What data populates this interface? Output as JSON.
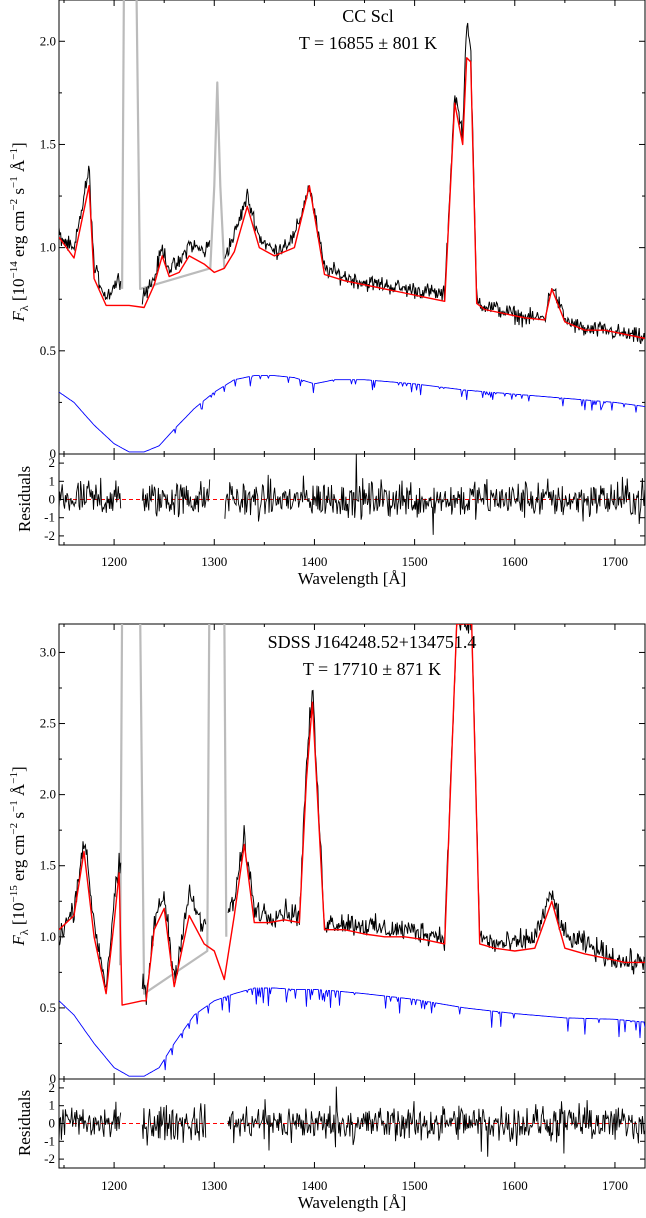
{
  "chart_data": [
    {
      "type": "line",
      "title": "CC Scl",
      "subtitle": "T = 16855 ± 801 K",
      "ylabel": "F_λ [10^−14 erg cm^−2 s^−1 Å^−1]",
      "ylabel_parts": {
        "sym": "F",
        "sub": "λ",
        "a": " [10",
        "e1": "−14",
        "b": " erg cm",
        "e2": "−2",
        "c": " s",
        "e3": "−1",
        "d": " Å",
        "e4": "−1",
        "e": "]"
      },
      "xlabel": "Wavelength [Å]",
      "resid_ylabel": "Residuals",
      "xlim": [
        1145,
        1730
      ],
      "ylim": [
        0,
        2.2
      ],
      "resid_ylim": [
        -2.5,
        2.5
      ],
      "xticks": [
        "1200",
        "1300",
        "1400",
        "1500",
        "1600",
        "1700"
      ],
      "yticks": [
        "0",
        "0.5",
        "1.0",
        "1.5",
        "2.0"
      ],
      "resid_yticks": [
        "2",
        "1",
        "0",
        "-1",
        "-2"
      ],
      "colors": {
        "observed": "#000000",
        "model": "#ff0000",
        "masked": "#bbbbbb",
        "wd": "#0000ff"
      },
      "series": [
        {
          "name": "observed",
          "x": [
            1145,
            1160,
            1175,
            1180,
            1192,
            1205,
            1215,
            1230,
            1240,
            1248,
            1255,
            1265,
            1275,
            1290,
            1300,
            1310,
            1320,
            1333,
            1345,
            1360,
            1380,
            1395,
            1410,
            1430,
            1450,
            1470,
            1490,
            1510,
            1530,
            1540,
            1548,
            1552,
            1556,
            1562,
            1570,
            1590,
            1610,
            1630,
            1637,
            1650,
            1670,
            1690,
            1710,
            1730
          ],
          "y": [
            1.06,
            0.98,
            1.38,
            0.9,
            0.76,
            0.85,
            0.8,
            0.78,
            0.85,
            1.0,
            0.9,
            0.92,
            1.02,
            0.98,
            1.05,
            0.96,
            1.06,
            1.25,
            1.05,
            0.98,
            1.05,
            1.3,
            0.9,
            0.86,
            0.83,
            0.82,
            0.8,
            0.79,
            0.77,
            1.75,
            1.55,
            2.12,
            1.95,
            0.75,
            0.72,
            0.69,
            0.66,
            0.66,
            0.82,
            0.65,
            0.6,
            0.6,
            0.58,
            0.56
          ]
        },
        {
          "name": "model",
          "x": [
            1145,
            1160,
            1175,
            1180,
            1192,
            1205,
            1215,
            1230,
            1240,
            1248,
            1255,
            1265,
            1275,
            1290,
            1300,
            1310,
            1320,
            1333,
            1345,
            1360,
            1380,
            1395,
            1410,
            1430,
            1450,
            1470,
            1490,
            1510,
            1530,
            1540,
            1548,
            1552,
            1556,
            1562,
            1570,
            1590,
            1610,
            1630,
            1637,
            1650,
            1670,
            1690,
            1710,
            1730
          ],
          "y": [
            1.05,
            0.95,
            1.3,
            0.85,
            0.72,
            0.72,
            0.72,
            0.71,
            0.82,
            0.96,
            0.86,
            0.88,
            0.96,
            0.92,
            0.88,
            0.9,
            0.98,
            1.2,
            1.0,
            0.96,
            1.0,
            1.3,
            0.87,
            0.84,
            0.82,
            0.8,
            0.78,
            0.76,
            0.74,
            1.7,
            1.5,
            1.92,
            1.9,
            0.73,
            0.7,
            0.68,
            0.66,
            0.65,
            0.8,
            0.64,
            0.6,
            0.6,
            0.58,
            0.56
          ]
        },
        {
          "name": "masked",
          "x": [
            1208,
            1210,
            1212,
            1218,
            1222,
            1226,
            1296,
            1300,
            1303,
            1306,
            1310
          ],
          "y": [
            0.8,
            2.4,
            2.4,
            2.4,
            2.4,
            0.8,
            0.9,
            1.3,
            1.8,
            1.3,
            0.9
          ]
        },
        {
          "name": "wd-model",
          "x": [
            1145,
            1160,
            1180,
            1200,
            1215,
            1230,
            1245,
            1260,
            1280,
            1300,
            1320,
            1340,
            1360,
            1380,
            1400,
            1420,
            1450,
            1500,
            1550,
            1600,
            1650,
            1700,
            1730
          ],
          "y": [
            0.3,
            0.25,
            0.14,
            0.05,
            0.01,
            0.01,
            0.04,
            0.12,
            0.22,
            0.3,
            0.36,
            0.38,
            0.38,
            0.37,
            0.34,
            0.36,
            0.36,
            0.34,
            0.31,
            0.29,
            0.27,
            0.25,
            0.23
          ]
        }
      ]
    },
    {
      "type": "line",
      "title": "SDSS J164248.52+134751.4",
      "subtitle": "T = 17710 ± 871 K",
      "ylabel": "F_λ [10^−15 erg cm^−2 s^−1 Å^−1]",
      "ylabel_parts": {
        "sym": "F",
        "sub": "λ",
        "a": " [10",
        "e1": "−15",
        "b": " erg cm",
        "e2": "−2",
        "c": " s",
        "e3": "−1",
        "d": " Å",
        "e4": "−1",
        "e": "]"
      },
      "xlabel": "Wavelength [Å]",
      "resid_ylabel": "Residuals",
      "xlim": [
        1145,
        1730
      ],
      "ylim": [
        0,
        3.2
      ],
      "resid_ylim": [
        -2.5,
        2.5
      ],
      "xticks": [
        "1200",
        "1300",
        "1400",
        "1500",
        "1600",
        "1700"
      ],
      "yticks": [
        "0",
        "0.5",
        "1.0",
        "1.5",
        "2.0",
        "2.5",
        "3.0"
      ],
      "resid_yticks": [
        "2",
        "1",
        "0",
        "-1",
        "-2"
      ],
      "colors": {
        "observed": "#000000",
        "model": "#ff0000",
        "masked": "#bbbbbb",
        "wd": "#0000ff"
      },
      "series": [
        {
          "name": "observed",
          "x": [
            1145,
            1160,
            1170,
            1180,
            1192,
            1200,
            1205,
            1232,
            1240,
            1250,
            1260,
            1275,
            1290,
            1300,
            1320,
            1330,
            1340,
            1355,
            1370,
            1385,
            1392,
            1398,
            1410,
            1430,
            1450,
            1470,
            1490,
            1510,
            1530,
            1542,
            1550,
            1557,
            1565,
            1580,
            1600,
            1620,
            1637,
            1650,
            1670,
            1690,
            1710,
            1730
          ],
          "y": [
            1.0,
            1.2,
            1.7,
            1.1,
            0.65,
            1.25,
            1.5,
            0.55,
            1.1,
            1.3,
            0.7,
            1.3,
            1.05,
            1.05,
            1.25,
            1.7,
            1.2,
            1.15,
            1.18,
            1.15,
            2.2,
            2.75,
            1.1,
            1.1,
            1.08,
            1.05,
            1.05,
            1.03,
            1.0,
            3.2,
            3.2,
            3.2,
            1.0,
            0.95,
            0.95,
            1.0,
            1.3,
            1.0,
            0.95,
            0.88,
            0.82,
            0.82
          ]
        },
        {
          "name": "model",
          "x": [
            1145,
            1160,
            1170,
            1180,
            1192,
            1200,
            1205,
            1208,
            1228,
            1232,
            1240,
            1250,
            1260,
            1275,
            1290,
            1300,
            1310,
            1320,
            1330,
            1340,
            1355,
            1370,
            1385,
            1392,
            1398,
            1410,
            1430,
            1450,
            1470,
            1490,
            1510,
            1530,
            1542,
            1550,
            1557,
            1565,
            1580,
            1600,
            1620,
            1637,
            1650,
            1670,
            1690,
            1710,
            1730
          ],
          "y": [
            1.05,
            1.15,
            1.6,
            1.0,
            0.6,
            1.1,
            1.45,
            0.52,
            0.55,
            0.55,
            1.05,
            1.2,
            0.65,
            1.15,
            0.95,
            0.9,
            0.7,
            1.15,
            1.65,
            1.1,
            1.1,
            1.12,
            1.1,
            2.1,
            2.65,
            1.05,
            1.05,
            1.02,
            1.0,
            1.0,
            0.98,
            0.95,
            3.2,
            3.2,
            3.2,
            0.95,
            0.92,
            0.9,
            0.92,
            1.25,
            0.92,
            0.88,
            0.85,
            0.82,
            0.82
          ]
        },
        {
          "name": "masked",
          "x": [
            1206,
            1208,
            1212,
            1218,
            1222,
            1226,
            1230,
            1293,
            1295,
            1298,
            1305,
            1310,
            1312
          ],
          "y": [
            0.8,
            3.3,
            3.3,
            3.3,
            3.3,
            3.3,
            0.6,
            0.9,
            3.3,
            3.3,
            3.3,
            3.3,
            1.0
          ]
        },
        {
          "name": "wd-model",
          "x": [
            1145,
            1160,
            1180,
            1200,
            1215,
            1230,
            1245,
            1260,
            1280,
            1300,
            1320,
            1340,
            1360,
            1380,
            1400,
            1420,
            1450,
            1500,
            1550,
            1600,
            1650,
            1700,
            1730
          ],
          "y": [
            0.55,
            0.45,
            0.25,
            0.08,
            0.02,
            0.02,
            0.08,
            0.25,
            0.45,
            0.55,
            0.6,
            0.64,
            0.64,
            0.63,
            0.63,
            0.62,
            0.6,
            0.56,
            0.5,
            0.46,
            0.43,
            0.42,
            0.4
          ]
        }
      ]
    }
  ]
}
